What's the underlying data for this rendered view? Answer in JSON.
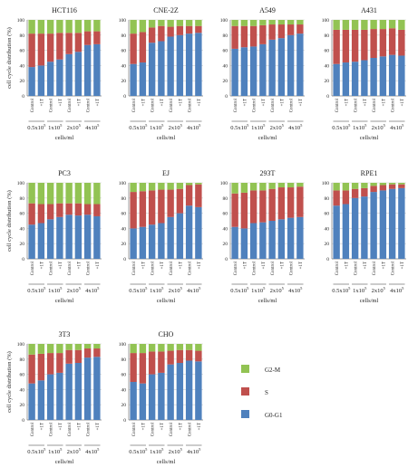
{
  "legend": [
    {
      "name": "G2-M",
      "color": "#92c353"
    },
    {
      "name": "S",
      "color": "#c0504d"
    },
    {
      "name": "G0-G1",
      "color": "#4f81bd"
    }
  ],
  "chart_data": [
    {
      "type": "bar",
      "stacked": true,
      "title": "HCT116",
      "ylabel": "cell cycle distribution (%)",
      "xlabel": "cells/ml",
      "ylim": [
        0,
        100
      ],
      "yticks": [
        0,
        20,
        40,
        60,
        80,
        100
      ],
      "categories": [
        "Control",
        "+1T",
        "Control",
        "+1T",
        "Control",
        "+1T",
        "Control",
        "+1T"
      ],
      "groups": [
        "0.5x10",
        "1x10",
        "2x10",
        "4x10"
      ],
      "group_exponent": "5",
      "series": [
        {
          "name": "G0-G1",
          "values": [
            38,
            40,
            45,
            48,
            55,
            58,
            67,
            68
          ]
        },
        {
          "name": "S",
          "values": [
            44,
            42,
            37,
            35,
            28,
            25,
            18,
            17
          ]
        },
        {
          "name": "G2-M",
          "values": [
            18,
            18,
            18,
            17,
            17,
            17,
            15,
            15
          ]
        }
      ]
    },
    {
      "type": "bar",
      "stacked": true,
      "title": "CNE-2Z",
      "ylabel": "",
      "xlabel": "cells/ml",
      "ylim": [
        0,
        100
      ],
      "yticks": [
        0,
        20,
        40,
        60,
        80,
        100
      ],
      "categories": [
        "Control",
        "+1T",
        "Control",
        "+1T",
        "Control",
        "+1T",
        "Control",
        "+1T"
      ],
      "groups": [
        "0.5x10",
        "1x10",
        "2x10",
        "4x10"
      ],
      "group_exponent": "5",
      "series": [
        {
          "name": "G0-G1",
          "values": [
            42,
            44,
            70,
            72,
            78,
            80,
            82,
            83
          ]
        },
        {
          "name": "S",
          "values": [
            40,
            40,
            20,
            20,
            13,
            12,
            10,
            9
          ]
        },
        {
          "name": "G2-M",
          "values": [
            18,
            16,
            10,
            8,
            9,
            8,
            8,
            8
          ]
        }
      ]
    },
    {
      "type": "bar",
      "stacked": true,
      "title": "A549",
      "ylabel": "",
      "xlabel": "cells/ml",
      "ylim": [
        0,
        100
      ],
      "yticks": [
        0,
        20,
        40,
        60,
        80,
        100
      ],
      "categories": [
        "Control",
        "+1T",
        "Control",
        "+1T",
        "Control",
        "+1T",
        "Control",
        "+1T"
      ],
      "groups": [
        "0.5x10",
        "1x10",
        "2x10",
        "4x10"
      ],
      "group_exponent": "5",
      "series": [
        {
          "name": "G0-G1",
          "values": [
            62,
            64,
            65,
            68,
            74,
            76,
            80,
            82
          ]
        },
        {
          "name": "S",
          "values": [
            30,
            28,
            27,
            25,
            20,
            18,
            14,
            12
          ]
        },
        {
          "name": "G2-M",
          "values": [
            8,
            8,
            8,
            7,
            6,
            6,
            6,
            6
          ]
        }
      ]
    },
    {
      "type": "bar",
      "stacked": true,
      "title": "A431",
      "ylabel": "",
      "xlabel": "cells/ml",
      "ylim": [
        0,
        100
      ],
      "yticks": [
        0,
        20,
        40,
        60,
        80,
        100
      ],
      "categories": [
        "Control",
        "+1T",
        "Control",
        "+1T",
        "Control",
        "+1T",
        "Control",
        "+1T"
      ],
      "groups": [
        "0.5x10",
        "1x10",
        "2x10",
        "4x10"
      ],
      "group_exponent": "5",
      "series": [
        {
          "name": "G0-G1",
          "values": [
            42,
            44,
            45,
            47,
            50,
            52,
            54,
            53
          ]
        },
        {
          "name": "S",
          "values": [
            45,
            43,
            42,
            40,
            38,
            36,
            35,
            34
          ]
        },
        {
          "name": "G2-M",
          "values": [
            13,
            13,
            13,
            13,
            12,
            12,
            11,
            13
          ]
        }
      ]
    },
    {
      "type": "bar",
      "stacked": true,
      "title": "PC3",
      "ylabel": "cell cycle distribution (%)",
      "xlabel": "cells/ml",
      "ylim": [
        0,
        100
      ],
      "yticks": [
        0,
        20,
        40,
        60,
        80,
        100
      ],
      "categories": [
        "Control",
        "+1T",
        "Control",
        "+1T",
        "Control",
        "+1T",
        "Control",
        "+1T"
      ],
      "groups": [
        "0.5x10",
        "1x10",
        "2x10",
        "4x10"
      ],
      "group_exponent": "5",
      "series": [
        {
          "name": "G0-G1",
          "values": [
            45,
            47,
            52,
            55,
            58,
            57,
            58,
            56
          ]
        },
        {
          "name": "S",
          "values": [
            28,
            25,
            20,
            18,
            15,
            16,
            14,
            16
          ]
        },
        {
          "name": "G2-M",
          "values": [
            27,
            28,
            28,
            27,
            27,
            27,
            28,
            28
          ]
        }
      ]
    },
    {
      "type": "bar",
      "stacked": true,
      "title": "EJ",
      "ylabel": "",
      "xlabel": "cells/ml",
      "ylim": [
        0,
        100
      ],
      "yticks": [
        0,
        20,
        40,
        60,
        80,
        100
      ],
      "categories": [
        "Control",
        "+1T",
        "Control",
        "+1T",
        "Control",
        "+1T",
        "Control",
        "+1T"
      ],
      "groups": [
        "0.5x10",
        "1x10",
        "2x10",
        "4x10"
      ],
      "group_exponent": "5",
      "series": [
        {
          "name": "G0-G1",
          "values": [
            40,
            42,
            45,
            47,
            55,
            60,
            70,
            68
          ]
        },
        {
          "name": "S",
          "values": [
            48,
            47,
            45,
            44,
            36,
            32,
            27,
            30
          ]
        },
        {
          "name": "G2-M",
          "values": [
            12,
            11,
            10,
            9,
            9,
            8,
            3,
            2
          ]
        }
      ]
    },
    {
      "type": "bar",
      "stacked": true,
      "title": "293T",
      "ylabel": "",
      "xlabel": "cells/ml",
      "ylim": [
        0,
        100
      ],
      "yticks": [
        0,
        20,
        40,
        60,
        80,
        100
      ],
      "categories": [
        "Control",
        "+1T",
        "Control",
        "+1T",
        "Control",
        "+1T",
        "Control",
        "+1T"
      ],
      "groups": [
        "0.5x10",
        "1x10",
        "2x10",
        "4x10"
      ],
      "group_exponent": "5",
      "series": [
        {
          "name": "G0-G1",
          "values": [
            42,
            40,
            47,
            48,
            50,
            52,
            54,
            55
          ]
        },
        {
          "name": "S",
          "values": [
            44,
            47,
            43,
            42,
            42,
            42,
            40,
            40
          ]
        },
        {
          "name": "G2-M",
          "values": [
            14,
            13,
            10,
            10,
            8,
            6,
            6,
            5
          ]
        }
      ]
    },
    {
      "type": "bar",
      "stacked": true,
      "title": "RPE1",
      "ylabel": "",
      "xlabel": "cells/ml",
      "ylim": [
        0,
        100
      ],
      "yticks": [
        0,
        20,
        40,
        60,
        80,
        100
      ],
      "categories": [
        "Control",
        "+1T",
        "Control",
        "+1T",
        "Control",
        "+1T",
        "Control",
        "+1T"
      ],
      "groups": [
        "0.5x10",
        "1x10",
        "2x10",
        "4x10"
      ],
      "group_exponent": "5",
      "series": [
        {
          "name": "G0-G1",
          "values": [
            70,
            72,
            80,
            82,
            88,
            90,
            92,
            93
          ]
        },
        {
          "name": "S",
          "values": [
            20,
            18,
            12,
            11,
            8,
            7,
            6,
            5
          ]
        },
        {
          "name": "G2-M",
          "values": [
            10,
            10,
            8,
            7,
            4,
            3,
            2,
            2
          ]
        }
      ]
    },
    {
      "type": "bar",
      "stacked": true,
      "title": "3T3",
      "ylabel": "cell cycle distribution (%)",
      "xlabel": "cells/ml",
      "ylim": [
        0,
        100
      ],
      "yticks": [
        0,
        20,
        40,
        60,
        80,
        100
      ],
      "categories": [
        "Control",
        "+1T",
        "Control",
        "+1T",
        "Control",
        "+1T",
        "Control",
        "+1T"
      ],
      "groups": [
        "0.5x10",
        "1x10",
        "2x10",
        "4x10"
      ],
      "group_exponent": "5",
      "series": [
        {
          "name": "G0-G1",
          "values": [
            48,
            52,
            60,
            62,
            74,
            75,
            82,
            83
          ]
        },
        {
          "name": "S",
          "values": [
            38,
            35,
            28,
            26,
            18,
            17,
            12,
            11
          ]
        },
        {
          "name": "G2-M",
          "values": [
            14,
            13,
            12,
            12,
            8,
            8,
            6,
            6
          ]
        }
      ]
    },
    {
      "type": "bar",
      "stacked": true,
      "title": "CHO",
      "ylabel": "",
      "xlabel": "cells/ml",
      "ylim": [
        0,
        100
      ],
      "yticks": [
        0,
        20,
        40,
        60,
        80,
        100
      ],
      "categories": [
        "Control",
        "+1T",
        "Control",
        "+1T",
        "Control",
        "+1T",
        "Control",
        "+1T"
      ],
      "groups": [
        "0.5x10",
        "1x10",
        "2x10",
        "4x10"
      ],
      "group_exponent": "5",
      "series": [
        {
          "name": "G0-G1",
          "values": [
            50,
            48,
            60,
            62,
            73,
            75,
            78,
            77
          ]
        },
        {
          "name": "S",
          "values": [
            38,
            40,
            30,
            28,
            18,
            17,
            14,
            14
          ]
        },
        {
          "name": "G2-M",
          "values": [
            12,
            12,
            10,
            10,
            9,
            8,
            8,
            9
          ]
        }
      ]
    }
  ]
}
